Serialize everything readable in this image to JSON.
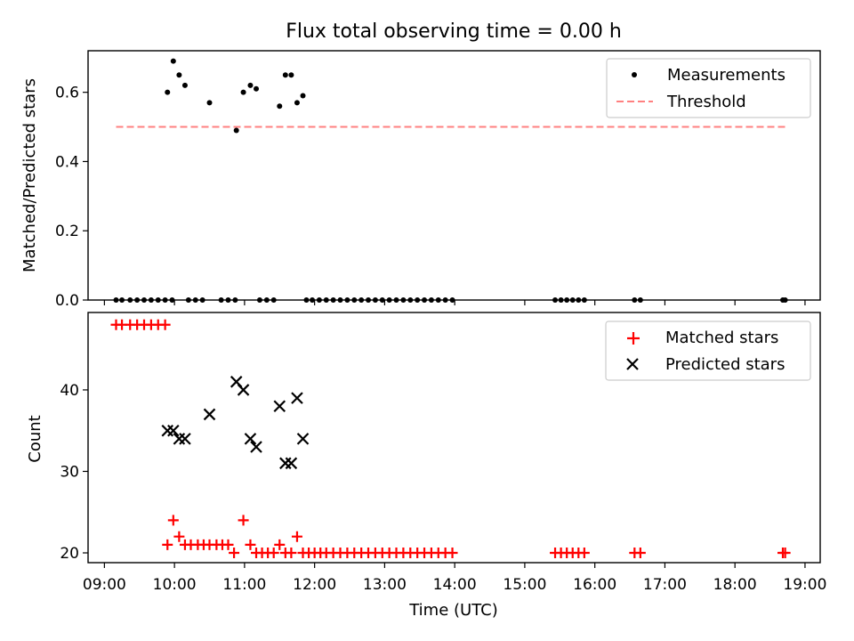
{
  "chart_data": [
    {
      "type": "scatter",
      "title": "Flux total observing time = 0.00 h",
      "ylabel": "Matched/Predicted stars",
      "xlabel": "",
      "ylim": [
        0,
        0.72
      ],
      "xlim": [
        "08:46",
        "19:13"
      ],
      "yticks": [
        "0.0",
        "0.2",
        "0.4",
        "0.6"
      ],
      "grid": false,
      "legend_position": "top-right",
      "series": [
        {
          "name": "Measurements",
          "color": "#000000",
          "marker": "dot",
          "points": [
            [
              "09:10",
              0
            ],
            [
              "09:15",
              0
            ],
            [
              "09:22",
              0
            ],
            [
              "09:28",
              0
            ],
            [
              "09:34",
              0
            ],
            [
              "09:40",
              0
            ],
            [
              "09:46",
              0
            ],
            [
              "09:52",
              0
            ],
            [
              "09:58",
              0
            ],
            [
              "09:54",
              0.6
            ],
            [
              "09:59",
              0.69
            ],
            [
              "10:04",
              0.65
            ],
            [
              "10:09",
              0.62
            ],
            [
              "10:30",
              0.57
            ],
            [
              "10:53",
              0.49
            ],
            [
              "10:59",
              0.6
            ],
            [
              "11:05",
              0.62
            ],
            [
              "11:10",
              0.61
            ],
            [
              "11:30",
              0.56
            ],
            [
              "11:35",
              0.65
            ],
            [
              "11:40",
              0.65
            ],
            [
              "11:45",
              0.57
            ],
            [
              "11:50",
              0.59
            ],
            [
              "10:12",
              0
            ],
            [
              "10:18",
              0
            ],
            [
              "10:24",
              0
            ],
            [
              "10:40",
              0
            ],
            [
              "10:46",
              0
            ],
            [
              "10:52",
              0
            ],
            [
              "11:13",
              0
            ],
            [
              "11:19",
              0
            ],
            [
              "11:25",
              0
            ],
            [
              "11:53",
              0
            ],
            [
              "11:58",
              0
            ],
            [
              "12:04",
              0
            ],
            [
              "12:10",
              0
            ],
            [
              "12:16",
              0
            ],
            [
              "12:22",
              0
            ],
            [
              "12:28",
              0
            ],
            [
              "12:34",
              0
            ],
            [
              "12:40",
              0
            ],
            [
              "12:46",
              0
            ],
            [
              "12:52",
              0
            ],
            [
              "12:58",
              0
            ],
            [
              "13:04",
              0
            ],
            [
              "13:10",
              0
            ],
            [
              "13:16",
              0
            ],
            [
              "13:22",
              0
            ],
            [
              "13:28",
              0
            ],
            [
              "13:34",
              0
            ],
            [
              "13:40",
              0
            ],
            [
              "13:46",
              0
            ],
            [
              "13:52",
              0
            ],
            [
              "13:58",
              0
            ],
            [
              "15:26",
              0
            ],
            [
              "15:31",
              0
            ],
            [
              "15:36",
              0
            ],
            [
              "15:41",
              0
            ],
            [
              "15:46",
              0
            ],
            [
              "15:51",
              0
            ],
            [
              "16:34",
              0
            ],
            [
              "16:39",
              0
            ],
            [
              "18:41",
              0
            ],
            [
              "18:43",
              0
            ]
          ]
        },
        {
          "name": "Threshold",
          "color": "#ff8080",
          "style": "dashed",
          "points": [
            [
              "09:10",
              0.5
            ],
            [
              "18:45",
              0.5
            ]
          ]
        }
      ]
    },
    {
      "type": "scatter",
      "title": "",
      "xlabel": "Time (UTC)",
      "ylabel": "Count",
      "ylim": [
        18.8,
        49.5
      ],
      "xlim": [
        "08:46",
        "19:13"
      ],
      "yticks": [
        "20",
        "30",
        "40"
      ],
      "xticks": [
        "09:00",
        "10:00",
        "11:00",
        "12:00",
        "13:00",
        "14:00",
        "15:00",
        "16:00",
        "17:00",
        "18:00",
        "19:00"
      ],
      "grid": false,
      "legend_position": "top-right",
      "series": [
        {
          "name": "Matched stars",
          "color": "#ff0000",
          "marker": "plus",
          "points": [
            [
              "09:10",
              48
            ],
            [
              "09:15",
              48
            ],
            [
              "09:22",
              48
            ],
            [
              "09:28",
              48
            ],
            [
              "09:34",
              48
            ],
            [
              "09:40",
              48
            ],
            [
              "09:46",
              48
            ],
            [
              "09:52",
              48
            ],
            [
              "09:54",
              21
            ],
            [
              "09:59",
              24
            ],
            [
              "10:04",
              22
            ],
            [
              "10:09",
              21
            ],
            [
              "10:14",
              21
            ],
            [
              "10:20",
              21
            ],
            [
              "10:25",
              21
            ],
            [
              "10:30",
              21
            ],
            [
              "10:36",
              21
            ],
            [
              "10:41",
              21
            ],
            [
              "10:46",
              21
            ],
            [
              "10:51",
              20
            ],
            [
              "10:59",
              24
            ],
            [
              "11:05",
              21
            ],
            [
              "11:10",
              20
            ],
            [
              "11:15",
              20
            ],
            [
              "11:20",
              20
            ],
            [
              "11:25",
              20
            ],
            [
              "11:30",
              21
            ],
            [
              "11:35",
              20
            ],
            [
              "11:40",
              20
            ],
            [
              "11:45",
              22
            ],
            [
              "11:50",
              20
            ],
            [
              "11:55",
              20
            ],
            [
              "12:00",
              20
            ],
            [
              "12:05",
              20
            ],
            [
              "12:10",
              20
            ],
            [
              "12:16",
              20
            ],
            [
              "12:22",
              20
            ],
            [
              "12:28",
              20
            ],
            [
              "12:34",
              20
            ],
            [
              "12:40",
              20
            ],
            [
              "12:46",
              20
            ],
            [
              "12:52",
              20
            ],
            [
              "12:58",
              20
            ],
            [
              "13:04",
              20
            ],
            [
              "13:10",
              20
            ],
            [
              "13:16",
              20
            ],
            [
              "13:22",
              20
            ],
            [
              "13:28",
              20
            ],
            [
              "13:34",
              20
            ],
            [
              "13:40",
              20
            ],
            [
              "13:46",
              20
            ],
            [
              "13:52",
              20
            ],
            [
              "13:58",
              20
            ],
            [
              "15:26",
              20
            ],
            [
              "15:31",
              20
            ],
            [
              "15:36",
              20
            ],
            [
              "15:41",
              20
            ],
            [
              "15:46",
              20
            ],
            [
              "15:51",
              20
            ],
            [
              "16:34",
              20
            ],
            [
              "16:39",
              20
            ],
            [
              "18:41",
              20
            ],
            [
              "18:43",
              20
            ]
          ]
        },
        {
          "name": "Predicted stars",
          "color": "#000000",
          "marker": "x",
          "points": [
            [
              "09:54",
              35
            ],
            [
              "09:59",
              35
            ],
            [
              "10:04",
              34
            ],
            [
              "10:09",
              34
            ],
            [
              "10:30",
              37
            ],
            [
              "10:53",
              41
            ],
            [
              "10:59",
              40
            ],
            [
              "11:05",
              34
            ],
            [
              "11:10",
              33
            ],
            [
              "11:30",
              38
            ],
            [
              "11:35",
              31
            ],
            [
              "11:40",
              31
            ],
            [
              "11:45",
              39
            ],
            [
              "11:50",
              34
            ]
          ]
        }
      ]
    }
  ]
}
